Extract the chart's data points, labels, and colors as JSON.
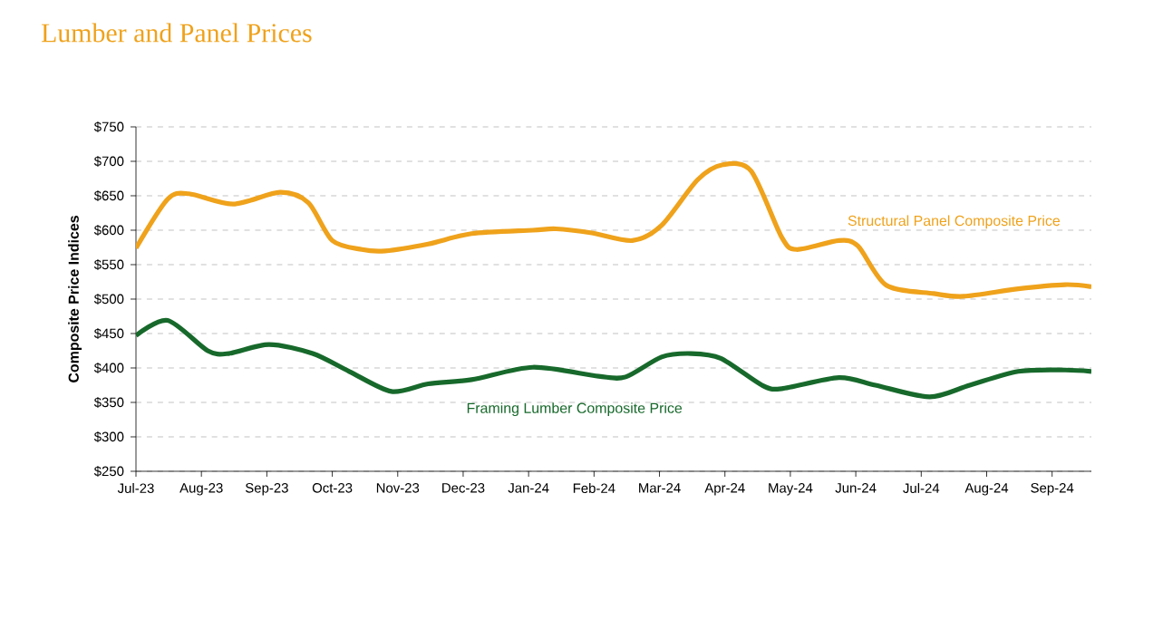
{
  "chart_data": {
    "type": "line",
    "title": "Lumber and Panel Prices",
    "ylabel": "Composite Price Indices",
    "xlim": [
      "2023-07-01",
      "2024-09-19"
    ],
    "xticks": [
      {
        "value": "2023-07-01",
        "label": "Jul-23"
      },
      {
        "value": "2023-08-01",
        "label": "Aug-23"
      },
      {
        "value": "2023-09-01",
        "label": "Sep-23"
      },
      {
        "value": "2023-10-01",
        "label": "Oct-23"
      },
      {
        "value": "2023-11-01",
        "label": "Nov-23"
      },
      {
        "value": "2023-12-01",
        "label": "Dec-23"
      },
      {
        "value": "2024-01-01",
        "label": "Jan-24"
      },
      {
        "value": "2024-02-01",
        "label": "Feb-24"
      },
      {
        "value": "2024-03-01",
        "label": "Mar-24"
      },
      {
        "value": "2024-04-01",
        "label": "Apr-24"
      },
      {
        "value": "2024-05-01",
        "label": "May-24"
      },
      {
        "value": "2024-06-01",
        "label": "Jun-24"
      },
      {
        "value": "2024-07-01",
        "label": "Jul-24"
      },
      {
        "value": "2024-08-01",
        "label": "Aug-24"
      },
      {
        "value": "2024-09-01",
        "label": "Sep-24"
      }
    ],
    "ylim": [
      250,
      750
    ],
    "yticks": [
      {
        "value": 250,
        "label": "$250"
      },
      {
        "value": 300,
        "label": "$300"
      },
      {
        "value": 350,
        "label": "$350"
      },
      {
        "value": 400,
        "label": "$400"
      },
      {
        "value": 450,
        "label": "$450"
      },
      {
        "value": 500,
        "label": "$500"
      },
      {
        "value": 550,
        "label": "$550"
      },
      {
        "value": 600,
        "label": "$600"
      },
      {
        "value": 650,
        "label": "$650"
      },
      {
        "value": 700,
        "label": "$700"
      },
      {
        "value": 750,
        "label": "$750"
      }
    ],
    "grid": "y",
    "legend": false,
    "marker": "none",
    "line_style": "solid",
    "series": [
      {
        "name": "Structural Panel Composite Price",
        "color": "#efa21b",
        "x": [
          "2023-07-01",
          "2023-07-16",
          "2023-07-26",
          "2023-08-16",
          "2023-09-07",
          "2023-09-20",
          "2023-10-01",
          "2023-10-15",
          "2023-10-26",
          "2023-11-15",
          "2023-12-05",
          "2024-01-03",
          "2024-01-14",
          "2024-01-31",
          "2024-02-18",
          "2024-03-02",
          "2024-03-19",
          "2024-03-31",
          "2024-04-13",
          "2024-04-27",
          "2024-05-04",
          "2024-05-24",
          "2024-06-02",
          "2024-06-15",
          "2024-07-07",
          "2024-07-21",
          "2024-08-16",
          "2024-09-07",
          "2024-09-19"
        ],
        "values": [
          574,
          645,
          653,
          638,
          655,
          640,
          585,
          572,
          570,
          580,
          595,
          600,
          602,
          596,
          585,
          607,
          673,
          695,
          686,
          590,
          572,
          585,
          577,
          520,
          508,
          504,
          515,
          521,
          518
        ]
      },
      {
        "name": "Framing Lumber Composite Price",
        "color": "#17692b",
        "x": [
          "2023-07-01",
          "2023-07-16",
          "2023-08-04",
          "2023-08-14",
          "2023-09-02",
          "2023-09-22",
          "2023-10-09",
          "2023-10-29",
          "2023-11-15",
          "2023-12-05",
          "2024-01-03",
          "2024-02-03",
          "2024-02-15",
          "2024-03-02",
          "2024-03-16",
          "2024-03-30",
          "2024-04-18",
          "2024-04-27",
          "2024-05-24",
          "2024-06-10",
          "2024-07-05",
          "2024-07-24",
          "2024-08-16",
          "2024-09-07",
          "2024-09-19"
        ],
        "values": [
          447,
          469,
          425,
          421,
          434,
          421,
          395,
          366,
          377,
          383,
          401,
          388,
          387,
          416,
          421,
          414,
          375,
          370,
          386,
          375,
          358,
          375,
          395,
          397,
          395
        ]
      }
    ]
  }
}
